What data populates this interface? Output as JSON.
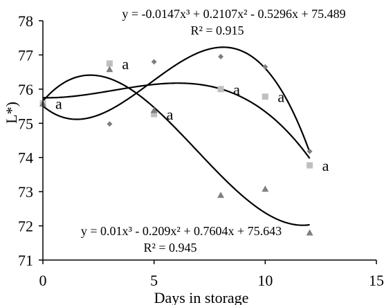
{
  "chart_data": {
    "type": "scatter",
    "title": "",
    "xlabel": "Days in storage",
    "ylabel_visible_fragment": "L*)",
    "xlim": [
      0,
      15
    ],
    "ylim": [
      71,
      78
    ],
    "x_ticks": [
      0,
      5,
      10,
      15
    ],
    "y_ticks": [
      71,
      72,
      73,
      74,
      75,
      76,
      77,
      78
    ],
    "x_tick_labels": [
      "0",
      "5",
      "10",
      "15"
    ],
    "y_tick_labels": [
      "71",
      "72",
      "73",
      "74",
      "75",
      "76",
      "77",
      "78"
    ],
    "grid": false,
    "legend": "none",
    "series": [
      {
        "marker": "diamond",
        "color": "#7f7f7f",
        "x": [
          0,
          3,
          5,
          8,
          10,
          12
        ],
        "y": [
          75.58,
          74.98,
          76.8,
          76.95,
          76.65,
          74.18
        ],
        "trendline": "poly3"
      },
      {
        "marker": "square",
        "color": "#bfbfbf",
        "x": [
          0,
          3,
          5,
          8,
          10,
          12
        ],
        "y": [
          75.58,
          76.75,
          75.27,
          76.0,
          75.78,
          73.77
        ],
        "trendline": "poly3",
        "point_labels": [
          "a",
          "a",
          "a",
          "a",
          "a",
          "a"
        ]
      },
      {
        "marker": "triangle",
        "color": "#808080",
        "x": [
          0,
          3,
          5,
          8,
          10,
          12
        ],
        "y": [
          75.57,
          76.58,
          75.38,
          72.9,
          73.08,
          71.8
        ],
        "trendline": "poly3"
      }
    ],
    "annotations": [
      {
        "text": "y = -0.0147x³ + 0.2107x² - 0.5296x + 75.489"
      },
      {
        "text": "R² = 0.915"
      },
      {
        "text": "y = 0.01x³ - 0.209x² + 0.7604x + 75.643"
      },
      {
        "text": "R² = 0.945"
      }
    ]
  }
}
